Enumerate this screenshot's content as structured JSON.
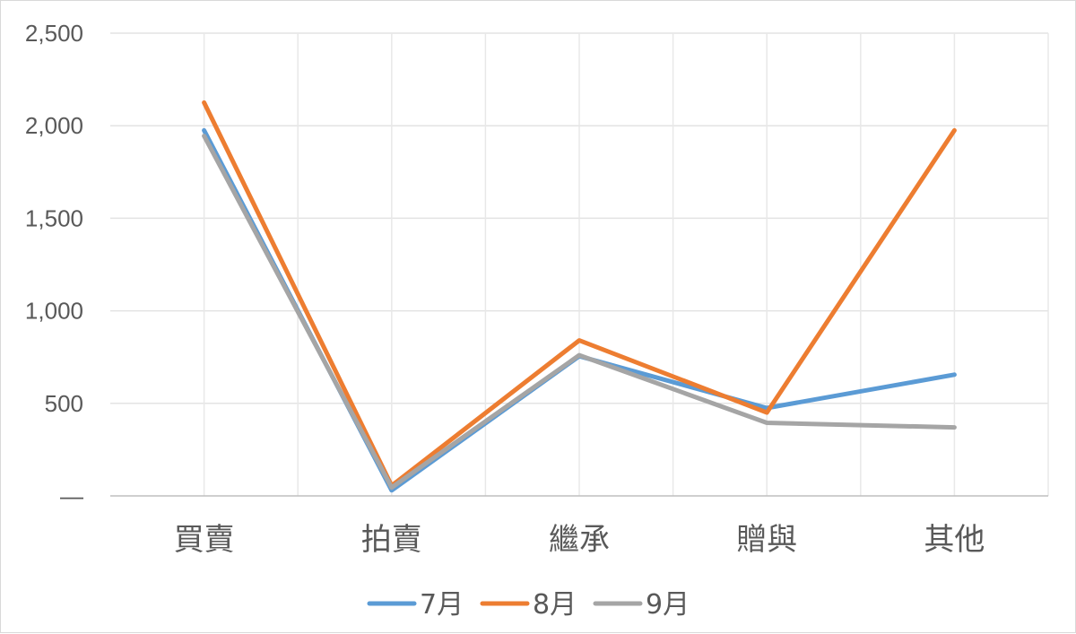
{
  "chart_data": {
    "type": "line",
    "categories": [
      "買賣",
      "拍賣",
      "繼承",
      "贈與",
      "其他"
    ],
    "series": [
      {
        "name": "7月",
        "values": [
          1975,
          30,
          755,
          475,
          655
        ],
        "color": "#5b9bd5"
      },
      {
        "name": "8月",
        "values": [
          2125,
          55,
          840,
          450,
          1975
        ],
        "color": "#ed7d31"
      },
      {
        "name": "9月",
        "values": [
          1945,
          45,
          760,
          395,
          370
        ],
        "color": "#a5a5a5"
      }
    ],
    "y_ticks": [
      {
        "value": 0,
        "label": "—"
      },
      {
        "value": 500,
        "label": "500"
      },
      {
        "value": 1000,
        "label": "1,000"
      },
      {
        "value": 1500,
        "label": "1,500"
      },
      {
        "value": 2000,
        "label": "2,000"
      },
      {
        "value": 2500,
        "label": "2,500"
      }
    ],
    "ylim": [
      0,
      2500
    ],
    "grid": true,
    "legend": "bottom",
    "title": "",
    "xlabel": "",
    "ylabel": ""
  }
}
